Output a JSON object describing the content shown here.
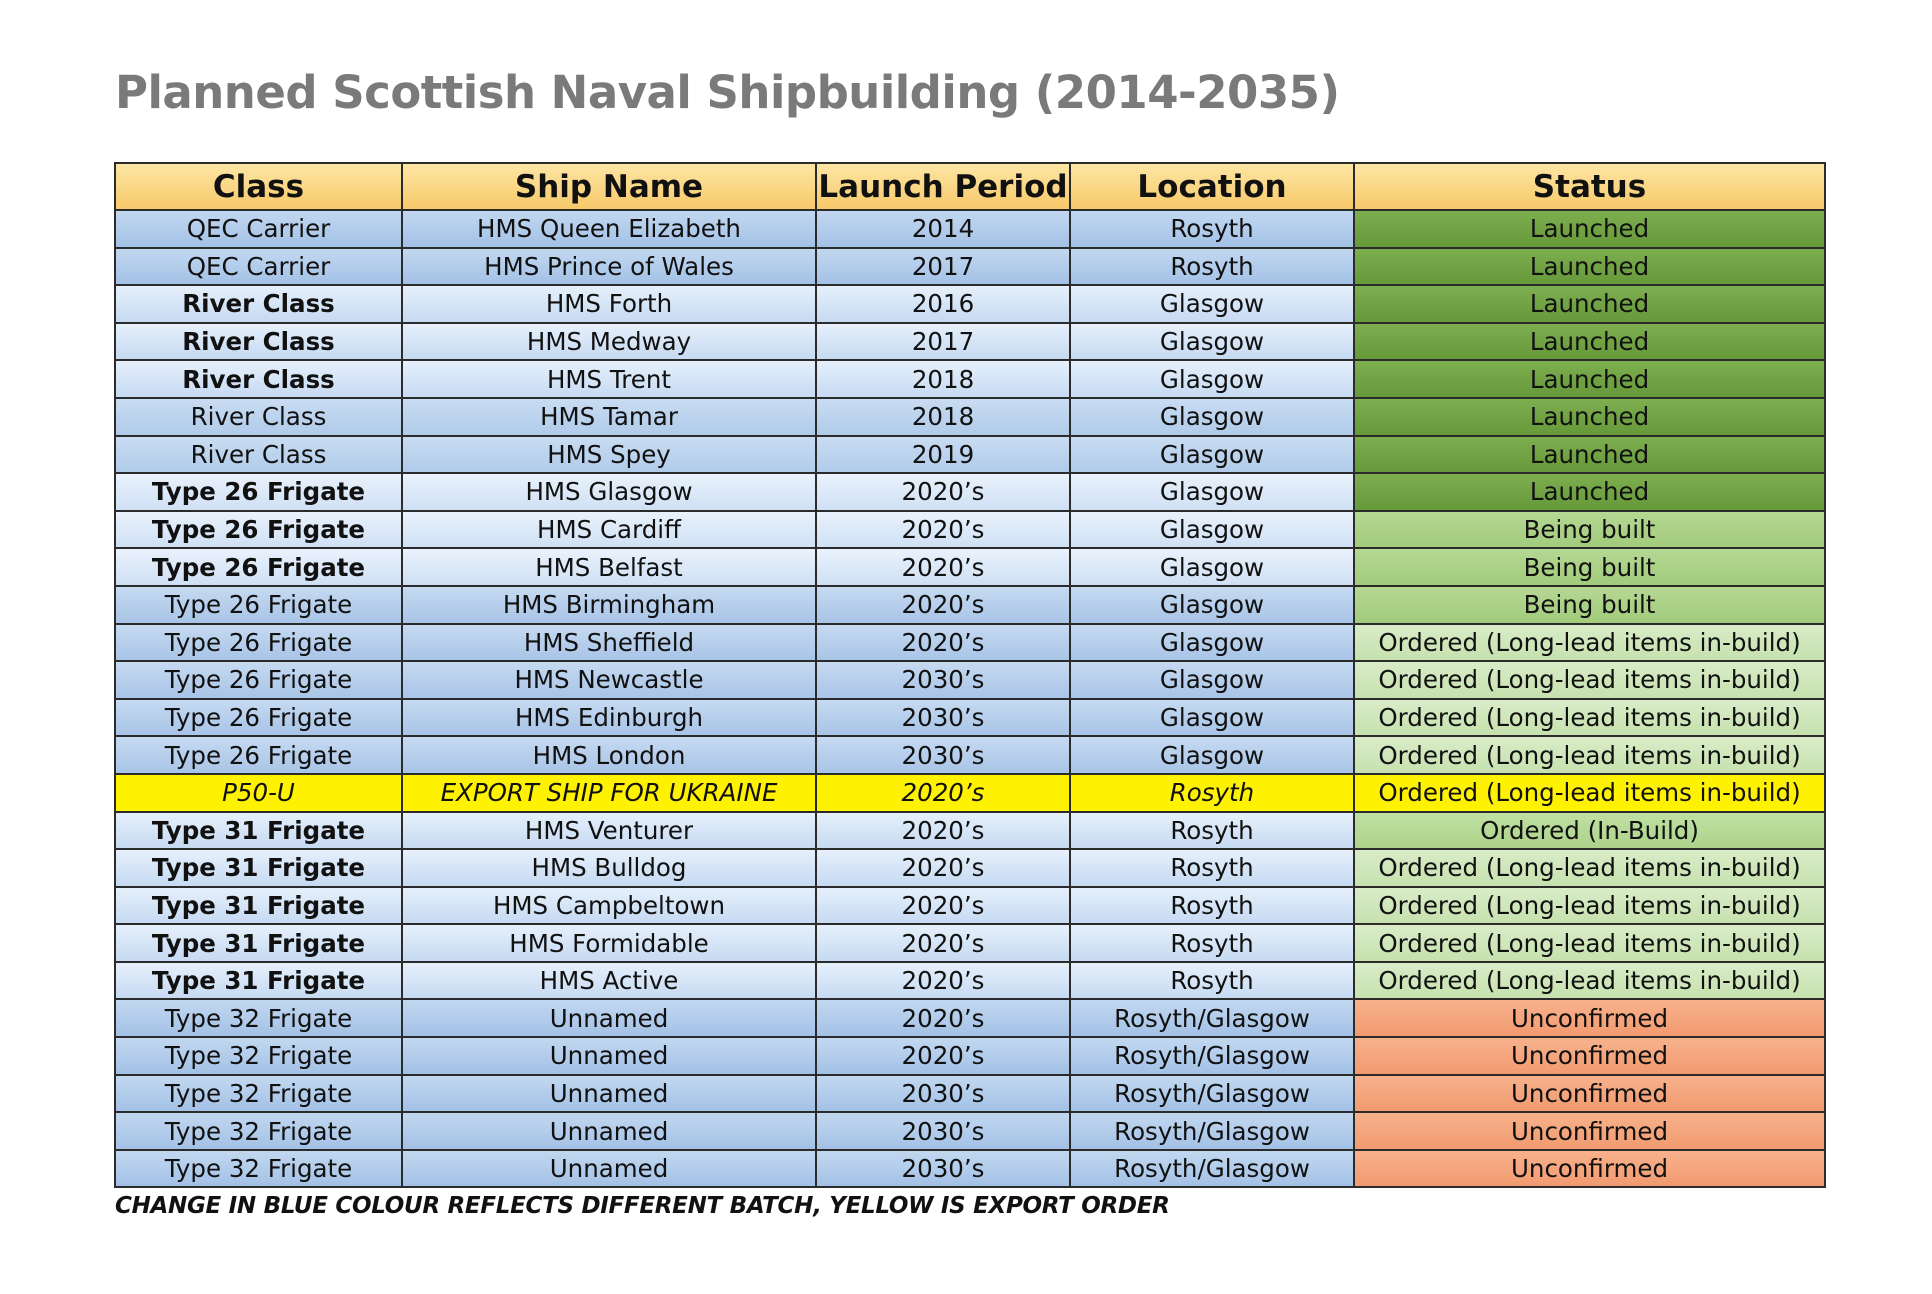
{
  "title": "Planned Scottish Naval Shipbuilding (2014-2035)",
  "headers": [
    "Class",
    "Ship Name",
    "Launch Period",
    "Location",
    "Status"
  ],
  "rows": [
    {
      "class": "QEC Carrier",
      "ship": "HMS Queen Elizabeth",
      "period": "2014",
      "location": "Rosyth",
      "status": "Launched"
    },
    {
      "class": "QEC Carrier",
      "ship": "HMS Prince of Wales",
      "period": "2017",
      "location": "Rosyth",
      "status": "Launched"
    },
    {
      "class": "River Class",
      "ship": "HMS Forth",
      "period": "2016",
      "location": "Glasgow",
      "status": "Launched"
    },
    {
      "class": "River Class",
      "ship": "HMS Medway",
      "period": "2017",
      "location": "Glasgow",
      "status": "Launched"
    },
    {
      "class": "River Class",
      "ship": "HMS Trent",
      "period": "2018",
      "location": "Glasgow",
      "status": "Launched"
    },
    {
      "class": "River Class",
      "ship": "HMS Tamar",
      "period": "2018",
      "location": "Glasgow",
      "status": "Launched"
    },
    {
      "class": "River Class",
      "ship": "HMS Spey",
      "period": "2019",
      "location": "Glasgow",
      "status": "Launched"
    },
    {
      "class": "Type 26 Frigate",
      "ship": "HMS Glasgow",
      "period": "2020’s",
      "location": "Glasgow",
      "status": "Launched"
    },
    {
      "class": "Type 26 Frigate",
      "ship": "HMS Cardiff",
      "period": "2020’s",
      "location": "Glasgow",
      "status": "Being built"
    },
    {
      "class": "Type 26 Frigate",
      "ship": "HMS Belfast",
      "period": "2020’s",
      "location": "Glasgow",
      "status": "Being built"
    },
    {
      "class": "Type 26 Frigate",
      "ship": "HMS Birmingham",
      "period": "2020’s",
      "location": "Glasgow",
      "status": "Being built"
    },
    {
      "class": "Type 26 Frigate",
      "ship": "HMS Sheffield",
      "period": "2020’s",
      "location": "Glasgow",
      "status": "Ordered (Long-lead items in-build)"
    },
    {
      "class": "Type 26 Frigate",
      "ship": "HMS Newcastle",
      "period": "2030’s",
      "location": "Glasgow",
      "status": "Ordered (Long-lead items in-build)"
    },
    {
      "class": "Type 26 Frigate",
      "ship": "HMS Edinburgh",
      "period": "2030’s",
      "location": "Glasgow",
      "status": "Ordered (Long-lead items in-build)"
    },
    {
      "class": "Type 26 Frigate",
      "ship": "HMS London",
      "period": "2030’s",
      "location": "Glasgow",
      "status": "Ordered (Long-lead items in-build)"
    },
    {
      "class": "P50-U",
      "ship": "EXPORT SHIP FOR UKRAINE",
      "period": "2020’s",
      "location": "Rosyth",
      "status": "Ordered (Long-lead items in-build)"
    },
    {
      "class": "Type 31 Frigate",
      "ship": "HMS Venturer",
      "period": "2020’s",
      "location": "Rosyth",
      "status": "Ordered (In-Build)"
    },
    {
      "class": "Type 31 Frigate",
      "ship": "HMS Bulldog",
      "period": "2020’s",
      "location": "Rosyth",
      "status": "Ordered (Long-lead items in-build)"
    },
    {
      "class": "Type 31 Frigate",
      "ship": "HMS Campbeltown",
      "period": "2020’s",
      "location": "Rosyth",
      "status": "Ordered (Long-lead items in-build)"
    },
    {
      "class": "Type 31 Frigate",
      "ship": "HMS Formidable",
      "period": "2020’s",
      "location": "Rosyth",
      "status": "Ordered (Long-lead items in-build)"
    },
    {
      "class": "Type 31 Frigate",
      "ship": "HMS Active",
      "period": "2020’s",
      "location": "Rosyth",
      "status": "Ordered (Long-lead items in-build)"
    },
    {
      "class": "Type 32 Frigate",
      "ship": "Unnamed",
      "period": "2020’s",
      "location": "Rosyth/Glasgow",
      "status": "Unconfirmed"
    },
    {
      "class": "Type 32 Frigate",
      "ship": "Unnamed",
      "period": "2020’s",
      "location": "Rosyth/Glasgow",
      "status": "Unconfirmed"
    },
    {
      "class": "Type 32 Frigate",
      "ship": "Unnamed",
      "period": "2030’s",
      "location": "Rosyth/Glasgow",
      "status": "Unconfirmed"
    },
    {
      "class": "Type 32 Frigate",
      "ship": "Unnamed",
      "period": "2030’s",
      "location": "Rosyth/Glasgow",
      "status": "Unconfirmed"
    },
    {
      "class": "Type 32 Frigate",
      "ship": "Unnamed",
      "period": "2030’s",
      "location": "Rosyth/Glasgow",
      "status": "Unconfirmed"
    }
  ],
  "note": "CHANGE IN BLUE COLOUR REFLECTS DIFFERENT BATCH, YELLOW IS EXPORT ORDER",
  "colors": {
    "header": "#f9d27c",
    "launched": "#70a444",
    "being_built": "#a9d084",
    "ordered": "#cfe6bb",
    "unconfirmed": "#f5a57e",
    "export": "#fff200"
  }
}
